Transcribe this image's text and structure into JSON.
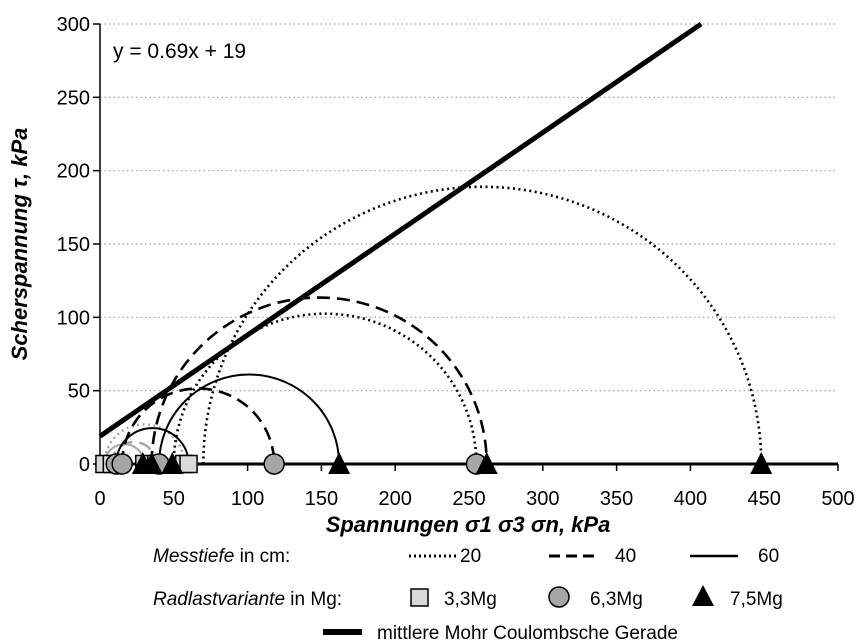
{
  "chart_data": {
    "type": "scatter",
    "title": "",
    "xlabel": "Spannungen σ1 σ3 σn, kPa",
    "ylabel": "Scherspannung τ, kPa",
    "xlim": [
      0,
      500
    ],
    "ylim": [
      0,
      300
    ],
    "x_ticks": [
      "0",
      "50",
      "100",
      "150",
      "200",
      "250",
      "300",
      "350",
      "400",
      "450",
      "500"
    ],
    "y_ticks": [
      "0",
      "50",
      "100",
      "150",
      "200",
      "250",
      "300"
    ],
    "grid": "horizontal dotted",
    "annotation": "y = 0.69x + 19",
    "line": {
      "name": "mittlere Mohr Coulombsche Gerade",
      "slope": 0.69,
      "intercept": 19
    },
    "circles": [
      {
        "sigma3": 3,
        "sigma1": 57,
        "depth": 20,
        "load": "3,3Mg"
      },
      {
        "sigma3": 8,
        "sigma1": 38,
        "depth": 40,
        "load": "3,3Mg"
      },
      {
        "sigma3": 3,
        "sigma1": 30,
        "depth": 60,
        "load": "3,3Mg"
      },
      {
        "sigma3": 50,
        "sigma1": 255,
        "depth": 20,
        "load": "6,3Mg"
      },
      {
        "sigma3": 15,
        "sigma1": 118,
        "depth": 40,
        "load": "6,3Mg"
      },
      {
        "sigma3": 11,
        "sigma1": 60,
        "depth": 60,
        "load": "6,3Mg"
      },
      {
        "sigma3": 70,
        "sigma1": 448,
        "depth": 20,
        "load": "7,5Mg"
      },
      {
        "sigma3": 35,
        "sigma1": 262,
        "depth": 40,
        "load": "7,5Mg"
      },
      {
        "sigma3": 40,
        "sigma1": 162,
        "depth": 60,
        "load": "7,5Mg"
      }
    ],
    "markers": [
      {
        "x": 3,
        "shape": "square"
      },
      {
        "x": 8,
        "shape": "square"
      },
      {
        "x": 30,
        "shape": "square"
      },
      {
        "x": 38,
        "shape": "square"
      },
      {
        "x": 57,
        "shape": "square"
      },
      {
        "x": 60,
        "shape": "square"
      },
      {
        "x": 11,
        "shape": "circle"
      },
      {
        "x": 15,
        "shape": "circle"
      },
      {
        "x": 40,
        "shape": "circle"
      },
      {
        "x": 118,
        "shape": "circle"
      },
      {
        "x": 255,
        "shape": "circle"
      },
      {
        "x": 29,
        "shape": "triangle"
      },
      {
        "x": 35,
        "shape": "triangle"
      },
      {
        "x": 49,
        "shape": "triangle"
      },
      {
        "x": 162,
        "shape": "triangle"
      },
      {
        "x": 262,
        "shape": "triangle"
      },
      {
        "x": 448,
        "shape": "triangle"
      }
    ],
    "depth_styles": {
      "20": "dotted",
      "40": "dashed",
      "60": "solid"
    },
    "load_colors": {
      "3,3Mg": "#a8a8a8",
      "6,3Mg": "#000000",
      "7,5Mg": "#000000"
    },
    "legend": {
      "depth_title": "Messtiefe",
      "depth_unit": " in cm:",
      "depth_entries": [
        "20",
        "40",
        "60"
      ],
      "load_title": "Radlastvariante",
      "load_unit": " in Mg:",
      "load_entries": [
        "3,3Mg",
        "6,3Mg",
        "7,5Mg"
      ],
      "line_entry": "mittlere Mohr Coulombsche Gerade"
    }
  }
}
